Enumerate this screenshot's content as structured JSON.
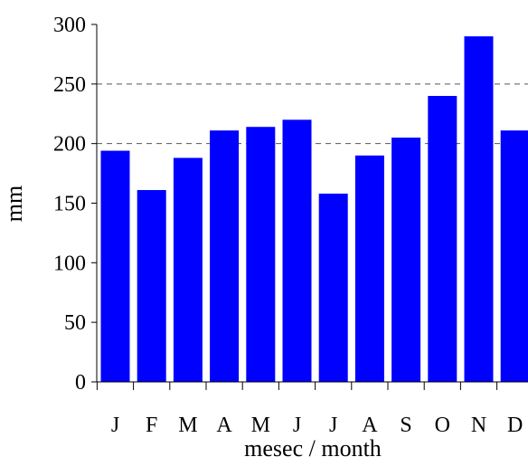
{
  "chart_data": {
    "type": "bar",
    "title": "",
    "xlabel": "mesec / month",
    "ylabel": "mm",
    "categories": [
      "J",
      "F",
      "M",
      "A",
      "M",
      "J",
      "J",
      "A",
      "S",
      "O",
      "N",
      "D"
    ],
    "series": [
      {
        "values": [
          194,
          161,
          188,
          211,
          214,
          220,
          158,
          190,
          205,
          240,
          290,
          211
        ]
      }
    ],
    "ylim": [
      0,
      300
    ],
    "yticks": [
      "0",
      "50",
      "100",
      "150",
      "200",
      "250",
      "300"
    ],
    "gridlines": [
      200,
      250
    ],
    "grid": "dashed horizontal lines at 200 and 250",
    "legend": "none",
    "colors": {
      "bar": "#0000ff",
      "axis": "#000000",
      "grid": "#555555",
      "background": "#ffffff"
    }
  }
}
